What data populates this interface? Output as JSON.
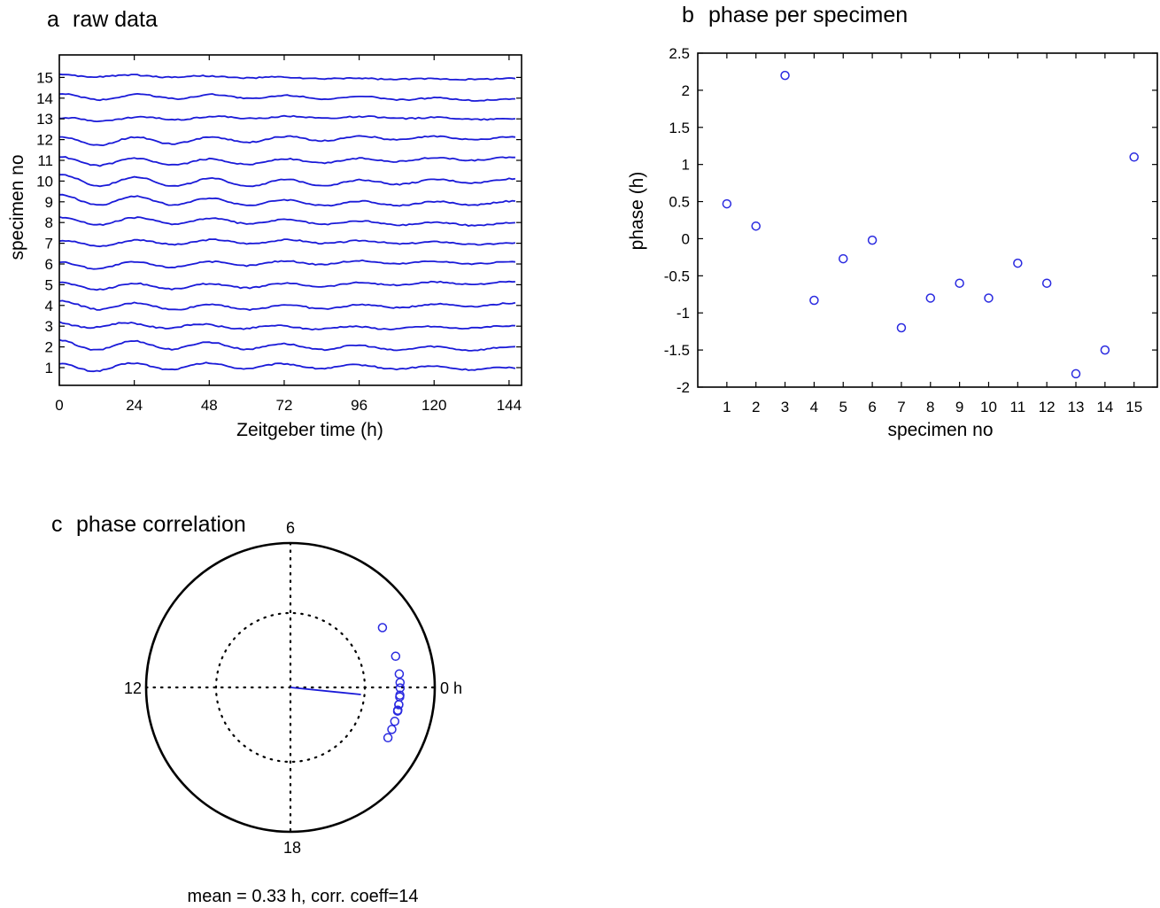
{
  "chart_data": [
    {
      "id": "a",
      "type": "line",
      "panel_letter": "a",
      "title": "raw data",
      "xlabel": "Zeitgeber time (h)",
      "ylabel": "specimen no",
      "xlim": [
        0,
        148
      ],
      "xticks": [
        0,
        24,
        48,
        72,
        96,
        120,
        144
      ],
      "yticks": [
        1,
        2,
        3,
        4,
        5,
        6,
        7,
        8,
        9,
        10,
        11,
        12,
        13,
        14,
        15
      ],
      "series_amplitude": [
        0.42,
        0.5,
        0.3,
        0.4,
        0.35,
        0.35,
        0.32,
        0.4,
        0.5,
        0.55,
        0.42,
        0.45,
        0.2,
        0.3,
        0.12
      ],
      "series_phase_h": [
        0.47,
        0.17,
        2.2,
        -0.83,
        -0.27,
        -0.02,
        -1.2,
        -0.8,
        -0.6,
        -0.8,
        -0.33,
        -0.6,
        -1.82,
        -1.5,
        1.1
      ]
    },
    {
      "id": "b",
      "type": "scatter",
      "panel_letter": "b",
      "title": "phase per specimen",
      "xlabel": "specimen no",
      "ylabel": "phase (h)",
      "xlim": [
        0,
        15.8
      ],
      "ylim": [
        -2,
        2.5
      ],
      "xticks": [
        1,
        2,
        3,
        4,
        5,
        6,
        7,
        8,
        9,
        10,
        11,
        12,
        13,
        14,
        15
      ],
      "yticks": [
        -2,
        -1.5,
        -1,
        -0.5,
        0,
        0.5,
        1,
        1.5,
        2,
        2.5
      ],
      "x": [
        1,
        2,
        3,
        4,
        5,
        6,
        7,
        8,
        9,
        10,
        11,
        12,
        13,
        14,
        15
      ],
      "y": [
        0.47,
        0.17,
        2.2,
        -0.83,
        -0.27,
        -0.02,
        -1.2,
        -0.8,
        -0.6,
        -0.8,
        -0.33,
        -0.6,
        -1.82,
        -1.5,
        1.1
      ]
    },
    {
      "id": "c",
      "type": "polar",
      "panel_letter": "c",
      "title": "phase correlation",
      "angle_labels": {
        "right": "0 h",
        "top": "6",
        "left": "12",
        "bottom": "18"
      },
      "period_h": 24,
      "phases_h": [
        0.47,
        0.17,
        2.2,
        -0.83,
        -0.27,
        -0.02,
        -1.2,
        -0.8,
        -0.6,
        -0.8,
        -0.33,
        -0.6,
        -1.82,
        -1.5,
        1.1
      ],
      "point_radius": 0.76,
      "mean_phase_h": 0.33,
      "mean_vector_length": 0.49,
      "caption": "mean = 0.33 h, corr. coeff=14"
    }
  ]
}
